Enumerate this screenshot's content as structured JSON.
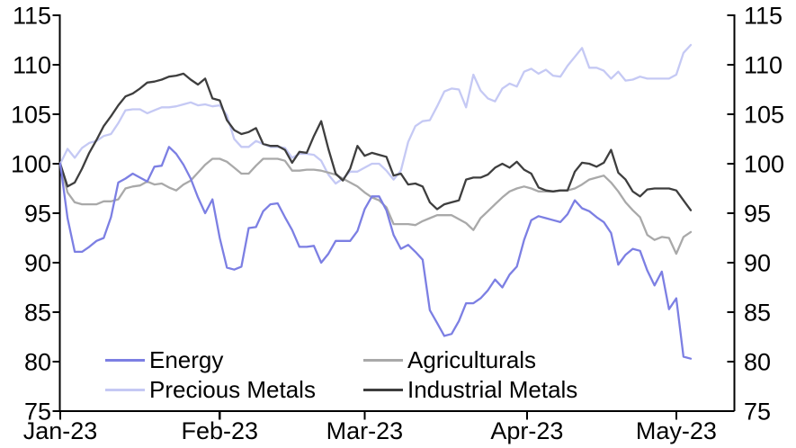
{
  "chart_data": {
    "type": "line",
    "description": "Indexed commodity price lines, all series indexed to 100 at start of January 2023",
    "index_base": 100,
    "x_axis": {
      "tick_labels": [
        "Jan-23",
        "Feb-23",
        "Mar-23",
        "Apr-23",
        "May-23"
      ],
      "tick_point_indices": [
        0,
        22,
        42,
        64.4,
        85
      ],
      "points_per_series": 88
    },
    "y_axis": {
      "ticks": [
        75,
        80,
        85,
        90,
        95,
        100,
        105,
        110,
        115
      ],
      "range": [
        75,
        115
      ],
      "mirrored_right": true,
      "grid": false
    },
    "legend": {
      "position": "bottom-inside",
      "columns": 2
    },
    "series": [
      {
        "name": "Energy",
        "color": "#7c7fe3",
        "values": [
          100,
          94.5,
          91.1,
          91.1,
          91.6,
          92.2,
          92.5,
          94.6,
          98.1,
          98.5,
          99,
          98.6,
          98.2,
          99.7,
          99.8,
          101.7,
          101,
          99.9,
          98.5,
          96.6,
          95,
          96.4,
          92.5,
          89.5,
          89.3,
          89.6,
          93.5,
          93.6,
          95.2,
          95.9,
          96,
          94.6,
          93.3,
          91.6,
          91.6,
          91.7,
          90,
          90.9,
          92.2,
          92.2,
          92.2,
          93.2,
          95.4,
          96.7,
          96.7,
          95.3,
          92.8,
          91.4,
          91.8,
          91.1,
          90.3,
          85.2,
          83.9,
          82.6,
          82.8,
          84.1,
          85.9,
          85.9,
          86.4,
          87.2,
          88.3,
          87.5,
          88.8,
          89.6,
          92.3,
          94.3,
          94.7,
          94.5,
          94.3,
          94.1,
          94.9,
          96.3,
          95.5,
          95.2,
          94.6,
          94.1,
          93,
          89.8,
          90.8,
          91.4,
          91.2,
          89.2,
          87.7,
          89.1,
          85.3,
          86.4,
          80.5,
          80.3
        ]
      },
      {
        "name": "Precious Metals",
        "color": "#c5c9f4",
        "values": [
          100,
          101.5,
          100.6,
          101.6,
          102.1,
          102.3,
          102.8,
          103,
          104.1,
          105.4,
          105.5,
          105.5,
          105.1,
          105.4,
          105.7,
          105.7,
          105.8,
          106,
          106.2,
          105.9,
          106,
          105.8,
          105.9,
          104.9,
          102.5,
          101.7,
          101.7,
          102.3,
          102,
          101.7,
          101.7,
          101.6,
          100.6,
          101,
          101,
          100.9,
          100.3,
          98.9,
          98,
          98.5,
          99.2,
          99.2,
          99.6,
          100,
          100,
          99.3,
          98.4,
          99.3,
          102.2,
          103.8,
          104.3,
          104.4,
          105.8,
          107.3,
          107.6,
          107.5,
          105.7,
          109,
          107.4,
          106.6,
          106.3,
          107.6,
          108.1,
          107.8,
          109.3,
          109.6,
          109.1,
          109.5,
          108.9,
          108.8,
          109.9,
          110.8,
          111.7,
          109.7,
          109.7,
          109.4,
          108.6,
          109.3,
          108.4,
          108.5,
          108.8,
          108.6,
          108.6,
          108.6,
          108.6,
          109,
          111.2,
          112
        ]
      },
      {
        "name": "Agriculturals",
        "color": "#a9a9a9",
        "values": [
          100,
          97.1,
          96.1,
          95.9,
          95.9,
          95.9,
          96.2,
          96.2,
          96.4,
          97.5,
          97.7,
          97.8,
          98.2,
          97.9,
          98,
          97.6,
          97.3,
          97.9,
          98.3,
          99.1,
          99.9,
          100.5,
          100.5,
          100.2,
          99.6,
          99,
          99,
          99.8,
          100.5,
          100.5,
          100.5,
          100.3,
          99.3,
          99.3,
          99.4,
          99.4,
          99.3,
          99.1,
          98.9,
          98.5,
          98.1,
          97.7,
          97.1,
          96.6,
          96.3,
          95.6,
          93.9,
          93.9,
          93.9,
          93.8,
          94.2,
          94.5,
          94.8,
          94.8,
          94.8,
          94.4,
          94,
          93.3,
          94.5,
          95.2,
          95.9,
          96.6,
          97.2,
          97.5,
          97.7,
          97.5,
          97.2,
          97.2,
          97.2,
          97.3,
          97.3,
          97.5,
          97.9,
          98.4,
          98.6,
          98.8,
          98.1,
          97.2,
          96.1,
          95.3,
          94.6,
          92.8,
          92.3,
          92.6,
          92.5,
          90.9,
          92.6,
          93.1
        ]
      },
      {
        "name": "Industrial Metals",
        "color": "#3e3e3e",
        "values": [
          100,
          97.7,
          98.1,
          99.5,
          101.1,
          102.4,
          103.8,
          104.8,
          105.9,
          106.8,
          107.1,
          107.6,
          108.2,
          108.3,
          108.5,
          108.8,
          108.9,
          109.1,
          108.5,
          108,
          108.6,
          106.6,
          106.4,
          104.4,
          103.4,
          103,
          103.2,
          103.6,
          102,
          101.8,
          101.8,
          101.4,
          100.1,
          101.2,
          101.1,
          102.8,
          104.3,
          101.5,
          99,
          98.3,
          99.5,
          101.8,
          100.8,
          101.1,
          100.9,
          100.7,
          98.8,
          99,
          97.9,
          98,
          97.7,
          96.1,
          95.4,
          95.9,
          96.1,
          96.3,
          98.4,
          98.6,
          98.6,
          98.9,
          99.6,
          100,
          99.6,
          100.2,
          99.4,
          99,
          97.6,
          97.3,
          97.2,
          97.3,
          97.3,
          99.2,
          100.1,
          100,
          99.7,
          100.1,
          101.4,
          99.1,
          98.4,
          97.2,
          96.7,
          97.4,
          97.5,
          97.5,
          97.5,
          97.3,
          96.3,
          95.3
        ]
      }
    ],
    "axis_color": "#000000"
  }
}
